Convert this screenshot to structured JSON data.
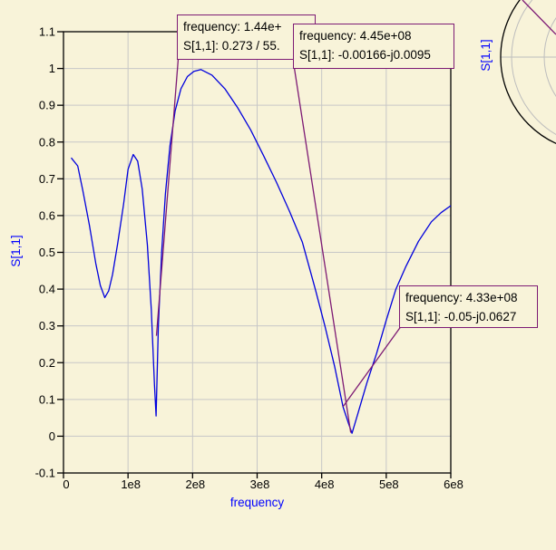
{
  "colors": {
    "background": "#f8f3d9",
    "grid": "#c7c7c7",
    "axis": "#000000",
    "curve_blue": "#0000dd",
    "label_blue": "#0000ff",
    "marker_purple": "#7d1a74"
  },
  "chart_data": {
    "type": "line",
    "xlabel": "frequency",
    "ylabel": "S[1,1]",
    "xlim": [
      0,
      600000000.0
    ],
    "ylim": [
      -0.1,
      1.1
    ],
    "grid": true,
    "x_ticks": [
      {
        "value": 0,
        "label": "0"
      },
      {
        "value": 100000000.0,
        "label": "1e8"
      },
      {
        "value": 200000000.0,
        "label": "2e8"
      },
      {
        "value": 300000000.0,
        "label": "3e8"
      },
      {
        "value": 400000000.0,
        "label": "4e8"
      },
      {
        "value": 500000000.0,
        "label": "5e8"
      },
      {
        "value": 600000000.0,
        "label": "6e8"
      }
    ],
    "y_ticks": [
      {
        "value": -0.1,
        "label": "-0.1"
      },
      {
        "value": 0,
        "label": "0"
      },
      {
        "value": 0.1,
        "label": "0.1"
      },
      {
        "value": 0.2,
        "label": "0.2"
      },
      {
        "value": 0.3,
        "label": "0.3"
      },
      {
        "value": 0.4,
        "label": "0.4"
      },
      {
        "value": 0.5,
        "label": "0.5"
      },
      {
        "value": 0.6,
        "label": "0.6"
      },
      {
        "value": 0.7,
        "label": "0.7"
      },
      {
        "value": 0.8,
        "label": "0.8"
      },
      {
        "value": 0.9,
        "label": "0.9"
      },
      {
        "value": 1,
        "label": "1"
      },
      {
        "value": 1.1,
        "label": "1.1"
      }
    ],
    "series": [
      {
        "name": "S[1,1]",
        "color": "#0000dd",
        "points": [
          [
            12000000.0,
            0.757
          ],
          [
            22000000.0,
            0.735
          ],
          [
            30000000.0,
            0.668
          ],
          [
            40000000.0,
            0.575
          ],
          [
            50000000.0,
            0.47
          ],
          [
            57000000.0,
            0.41
          ],
          [
            64000000.0,
            0.377
          ],
          [
            70000000.0,
            0.395
          ],
          [
            76000000.0,
            0.44
          ],
          [
            84000000.0,
            0.525
          ],
          [
            93000000.0,
            0.63
          ],
          [
            100000000.0,
            0.726
          ],
          [
            108000000.0,
            0.766
          ],
          [
            115000000.0,
            0.748
          ],
          [
            122000000.0,
            0.672
          ],
          [
            130000000.0,
            0.52
          ],
          [
            136000000.0,
            0.345
          ],
          [
            141000000.0,
            0.14
          ],
          [
            143500000.0,
            0.055
          ],
          [
            147000000.0,
            0.3
          ],
          [
            152000000.0,
            0.5
          ],
          [
            158000000.0,
            0.66
          ],
          [
            165000000.0,
            0.79
          ],
          [
            173000000.0,
            0.885
          ],
          [
            182000000.0,
            0.945
          ],
          [
            192000000.0,
            0.978
          ],
          [
            202000000.0,
            0.992
          ],
          [
            213000000.0,
            0.997
          ],
          [
            230000000.0,
            0.982
          ],
          [
            250000000.0,
            0.945
          ],
          [
            270000000.0,
            0.893
          ],
          [
            290000000.0,
            0.833
          ],
          [
            310000000.0,
            0.763
          ],
          [
            330000000.0,
            0.69
          ],
          [
            350000000.0,
            0.612
          ],
          [
            370000000.0,
            0.528
          ],
          [
            390000000.0,
            0.4
          ],
          [
            405000000.0,
            0.3
          ],
          [
            420000000.0,
            0.19
          ],
          [
            433000000.0,
            0.08
          ],
          [
            442000000.0,
            0.032
          ],
          [
            447000000.0,
            0.008
          ],
          [
            455000000.0,
            0.055
          ],
          [
            470000000.0,
            0.145
          ],
          [
            485000000.0,
            0.225
          ],
          [
            500000000.0,
            0.315
          ],
          [
            515000000.0,
            0.4
          ],
          [
            530000000.0,
            0.46
          ],
          [
            550000000.0,
            0.53
          ],
          [
            570000000.0,
            0.583
          ],
          [
            585000000.0,
            0.608
          ],
          [
            600000000.0,
            0.627
          ]
        ]
      }
    ],
    "markers": [
      {
        "frequency": 144000000.0,
        "magnitude": 0.273,
        "line1": "frequency: 1.44e+",
        "line2": "S[1,1]: 0.273 / 55."
      },
      {
        "frequency": 445000000.0,
        "magnitude": 0.00964,
        "line1": "frequency: 4.45e+08",
        "line2": "S[1,1]: -0.00166-j0.0095"
      },
      {
        "frequency": 433000000.0,
        "magnitude": 0.0802,
        "line1": "frequency: 4.33e+08",
        "line2": "S[1,1]: -0.05-j0.0627"
      }
    ]
  },
  "smith_chart": {
    "label": "S[1,1]"
  }
}
